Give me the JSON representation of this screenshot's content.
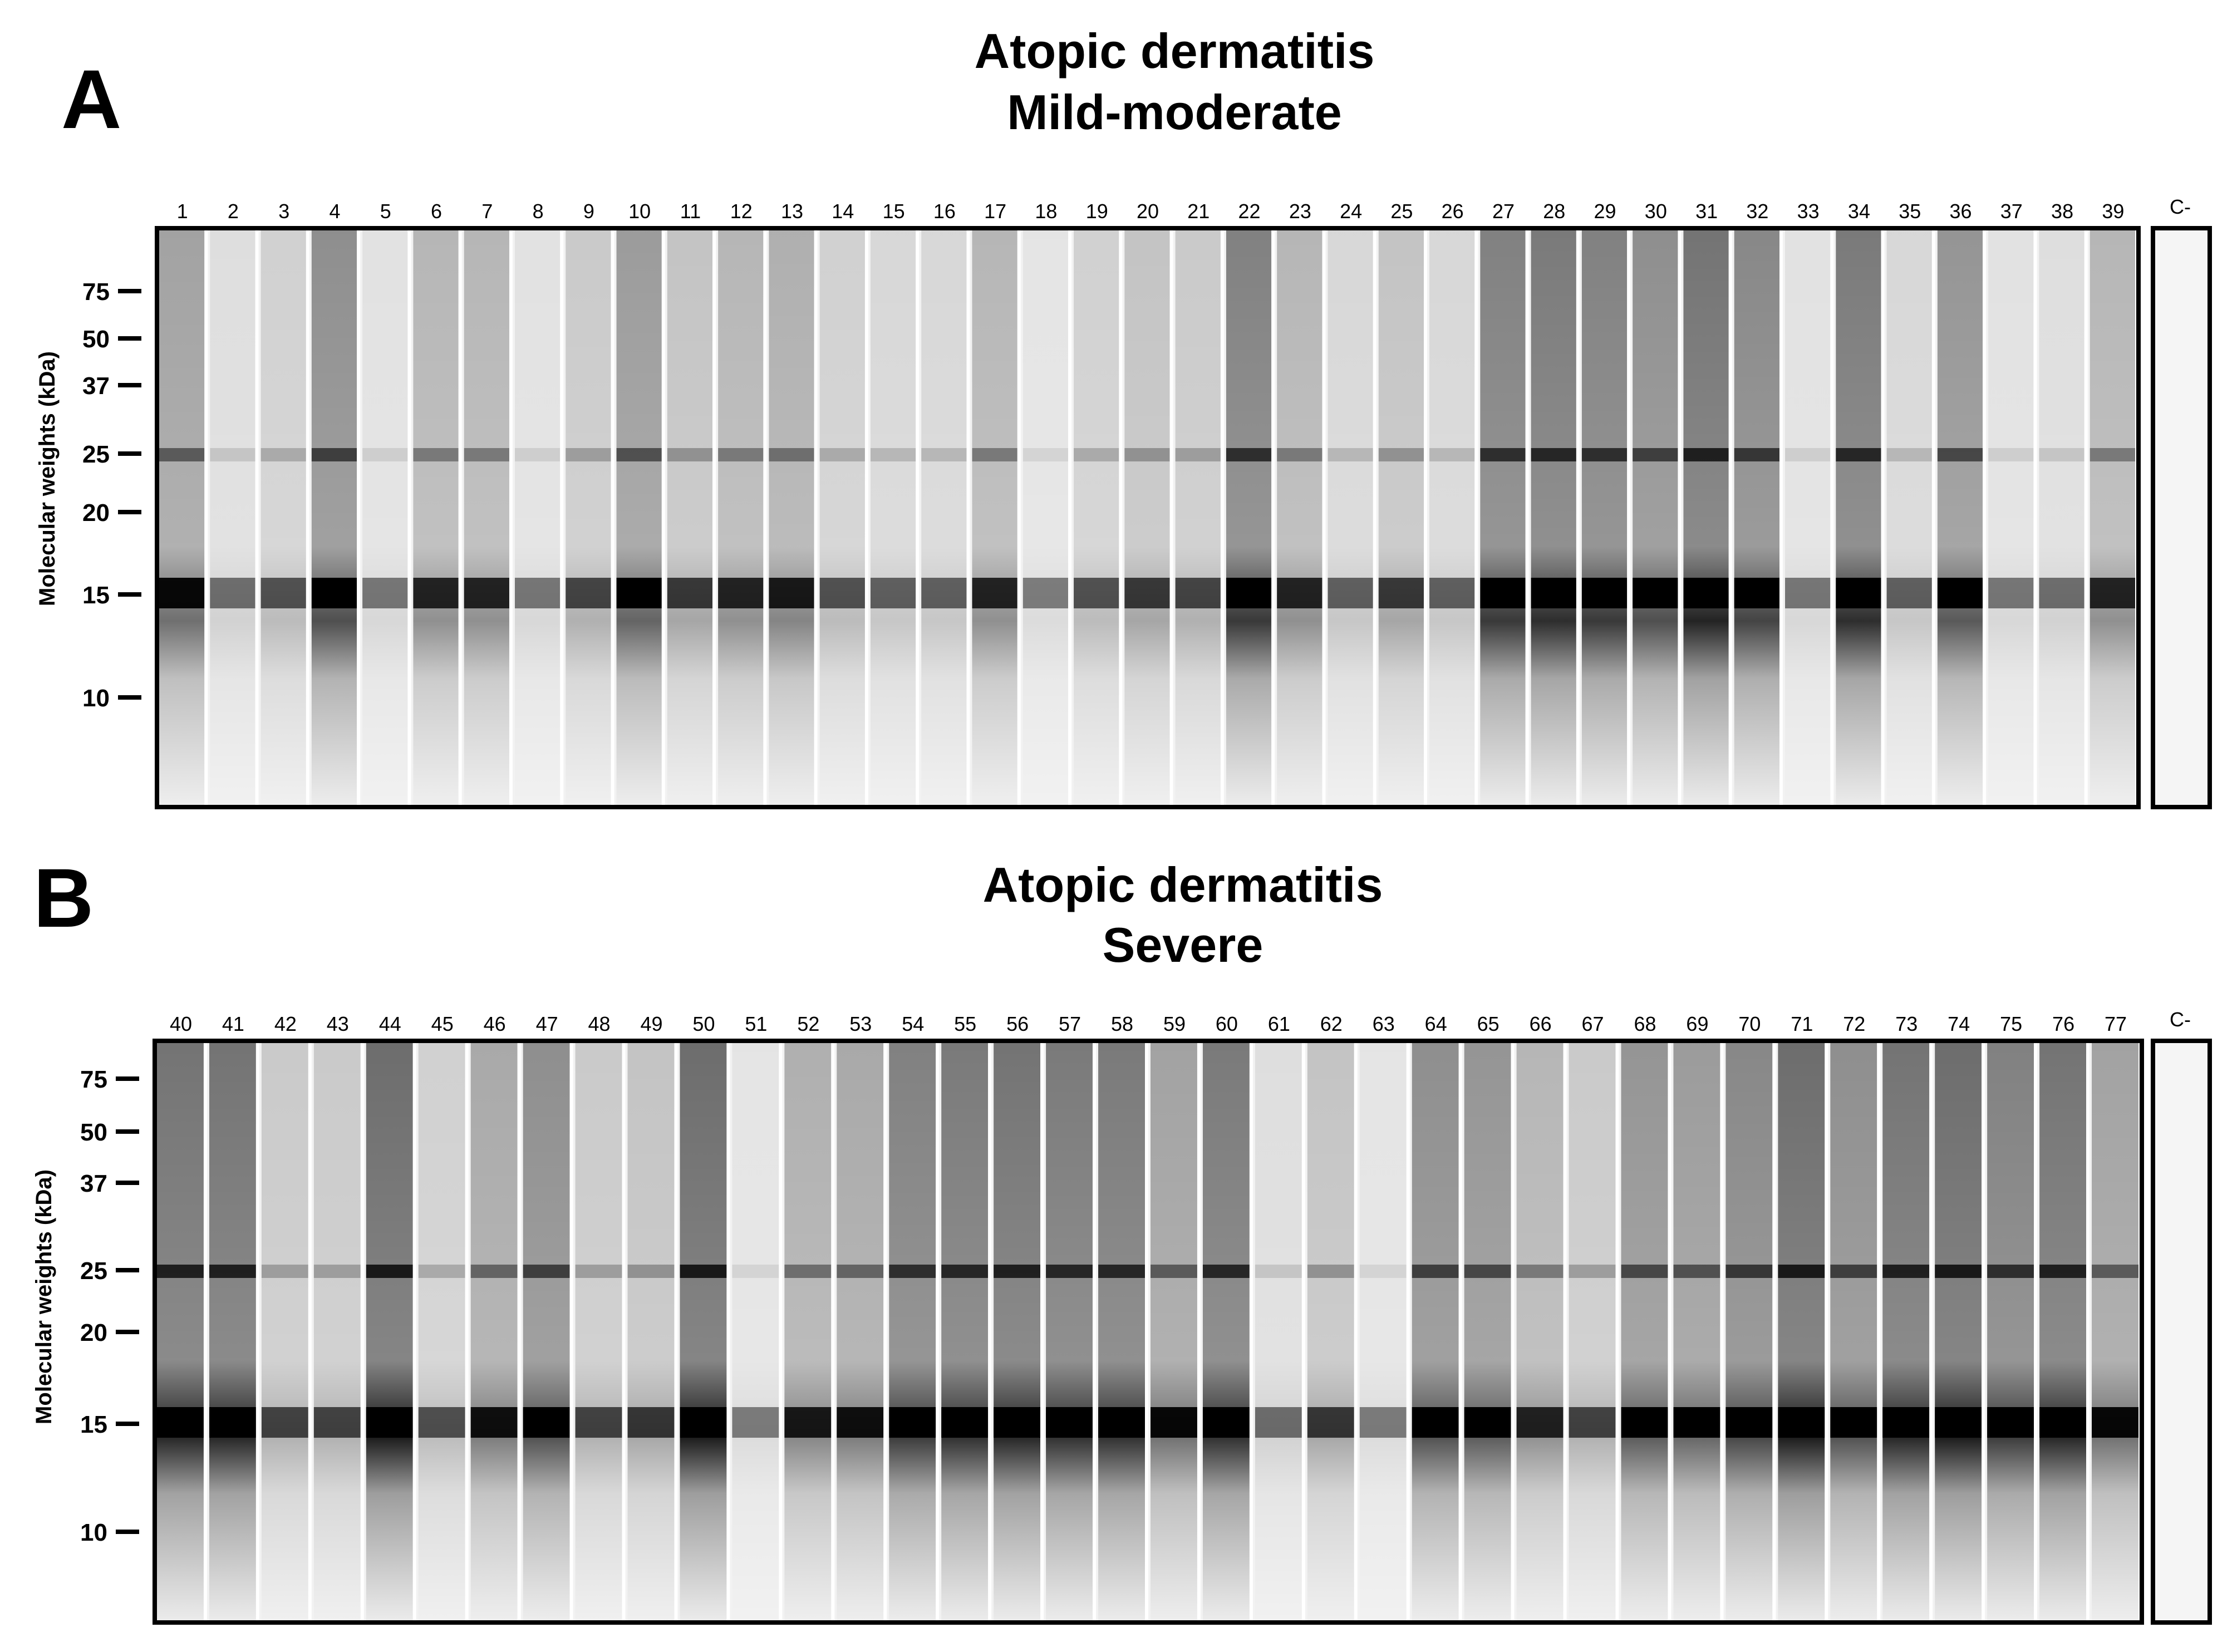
{
  "panels": [
    {
      "id": "A",
      "letter": "A",
      "title_line1": "Atopic dermatitis",
      "title_line2": "Mild-moderate",
      "y_axis_label": "Molecular weights (kDa)",
      "mw_markers": [
        "75",
        "50",
        "37",
        "25",
        "20",
        "15",
        "10"
      ],
      "lanes": [
        "1",
        "2",
        "3",
        "4",
        "5",
        "6",
        "7",
        "8",
        "9",
        "10",
        "11",
        "12",
        "13",
        "14",
        "15",
        "16",
        "17",
        "18",
        "19",
        "20",
        "21",
        "22",
        "23",
        "24",
        "25",
        "26",
        "27",
        "28",
        "29",
        "30",
        "31",
        "32",
        "33",
        "34",
        "35",
        "36",
        "37",
        "38",
        "39"
      ],
      "control_label": "C-",
      "lane_intensity": [
        0.6,
        0.15,
        0.25,
        0.75,
        0.12,
        0.45,
        0.45,
        0.12,
        0.3,
        0.65,
        0.35,
        0.45,
        0.5,
        0.25,
        0.2,
        0.2,
        0.45,
        0.1,
        0.25,
        0.35,
        0.3,
        0.85,
        0.45,
        0.2,
        0.35,
        0.2,
        0.85,
        0.9,
        0.85,
        0.75,
        0.95,
        0.8,
        0.12,
        0.9,
        0.2,
        0.7,
        0.12,
        0.15,
        0.45
      ]
    },
    {
      "id": "B",
      "letter": "B",
      "title_line1": "Atopic dermatitis",
      "title_line2": "Severe",
      "y_axis_label": "Molecular weights (kDa)",
      "mw_markers": [
        "75",
        "50",
        "37",
        "25",
        "20",
        "15",
        "10"
      ],
      "lanes": [
        "40",
        "41",
        "42",
        "43",
        "44",
        "45",
        "46",
        "47",
        "48",
        "49",
        "50",
        "51",
        "52",
        "53",
        "54",
        "55",
        "56",
        "57",
        "58",
        "59",
        "60",
        "61",
        "62",
        "63",
        "64",
        "65",
        "66",
        "67",
        "68",
        "69",
        "70",
        "71",
        "72",
        "73",
        "74",
        "75",
        "76",
        "77"
      ],
      "control_label": "C-",
      "lane_intensity": [
        0.95,
        0.95,
        0.3,
        0.3,
        1.0,
        0.25,
        0.55,
        0.75,
        0.3,
        0.35,
        1.0,
        0.1,
        0.5,
        0.55,
        0.85,
        0.9,
        0.95,
        0.9,
        0.9,
        0.6,
        0.9,
        0.15,
        0.35,
        0.1,
        0.75,
        0.7,
        0.45,
        0.3,
        0.7,
        0.65,
        0.8,
        1.0,
        0.75,
        0.95,
        1.0,
        0.85,
        0.95,
        0.6
      ]
    }
  ]
}
